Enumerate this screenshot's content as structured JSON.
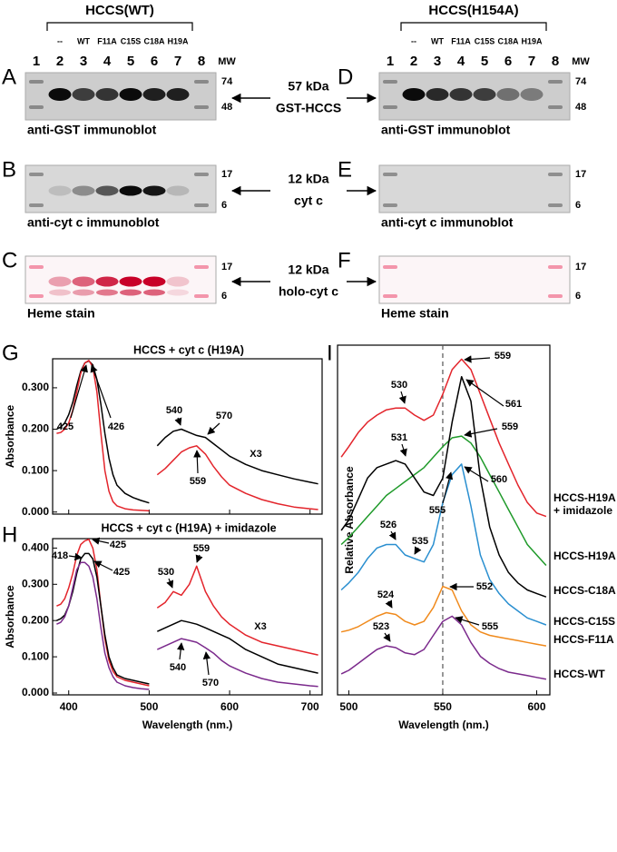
{
  "blots": {
    "groups": [
      {
        "title": "HCCS(WT)",
        "lanes": [
          "--",
          "WT",
          "F11A",
          "C15S",
          "C18A",
          "H19A"
        ],
        "lane_numbers": [
          1,
          2,
          3,
          4,
          5,
          6,
          7,
          8
        ],
        "mw_label": "MW",
        "panels": [
          {
            "letter": "A",
            "markers": [
              74,
              48
            ],
            "caption": "anti-GST immunoblot"
          },
          {
            "letter": "B",
            "markers": [
              17,
              6
            ],
            "caption": "anti-cyt c immunoblot"
          },
          {
            "letter": "C",
            "markers": [
              17,
              6
            ],
            "caption": "Heme stain"
          }
        ]
      },
      {
        "title": "HCCS(H154A)",
        "lanes": [
          "--",
          "WT",
          "F11A",
          "C15S",
          "C18A",
          "H19A"
        ],
        "lane_numbers": [
          1,
          2,
          3,
          4,
          5,
          6,
          7,
          8
        ],
        "mw_label": "MW",
        "panels": [
          {
            "letter": "D",
            "markers": [
              74,
              48
            ],
            "caption": "anti-GST immunoblot"
          },
          {
            "letter": "E",
            "markers": [
              17,
              6
            ],
            "caption": "anti-cyt c immunoblot"
          },
          {
            "letter": "F",
            "markers": [
              17,
              6
            ],
            "caption": "Heme stain"
          }
        ]
      }
    ],
    "middle_labels": [
      [
        "57 kDa",
        "GST-HCCS"
      ],
      [
        "12 kDa",
        "cyt c"
      ],
      [
        "12 kDa",
        "holo-cyt c"
      ]
    ]
  },
  "chart_data": [
    {
      "type": "line",
      "panel": "G",
      "title": "HCCS + cyt c (H19A)",
      "ylabel": "Absorbance",
      "x": [
        385,
        390,
        395,
        400,
        405,
        410,
        415,
        420,
        425,
        430,
        435,
        440,
        445,
        450,
        455,
        460,
        470,
        480,
        490,
        500,
        505,
        510,
        520,
        530,
        540,
        550,
        559,
        570,
        580,
        590,
        600,
        620,
        640,
        660,
        680,
        700,
        710
      ],
      "series": [
        {
          "color": "#000000",
          "values": [
            0.2,
            0.205,
            0.215,
            0.235,
            0.265,
            0.305,
            0.34,
            0.36,
            0.365,
            0.355,
            0.32,
            0.26,
            0.19,
            0.13,
            0.09,
            0.065,
            0.045,
            0.035,
            0.028,
            0.022,
            null,
            0.16,
            0.18,
            0.195,
            0.2,
            0.192,
            0.185,
            0.18,
            0.165,
            0.15,
            0.135,
            0.115,
            0.1,
            0.09,
            0.08,
            0.072,
            0.068
          ]
        },
        {
          "color": "#e3242b",
          "values": [
            0.19,
            0.192,
            0.2,
            0.215,
            0.245,
            0.29,
            0.335,
            0.36,
            0.366,
            0.35,
            0.29,
            0.19,
            0.1,
            0.05,
            0.025,
            0.015,
            0.008,
            0.005,
            0.004,
            0.003,
            null,
            0.09,
            0.105,
            0.125,
            0.145,
            0.155,
            0.16,
            0.14,
            0.11,
            0.085,
            0.065,
            0.045,
            0.03,
            0.02,
            0.012,
            0.008,
            0.006
          ]
        }
      ],
      "xlim": [
        380,
        715
      ],
      "ylim": [
        -0.005,
        0.37
      ],
      "xticks": [
        400,
        500,
        600,
        700
      ],
      "yticks": [
        {
          "value": 0,
          "label": "0.000"
        },
        {
          "value": 0.1,
          "label": "0.100"
        },
        {
          "value": 0.2,
          "label": "0.200"
        },
        {
          "value": 0.3,
          "label": "0.300"
        }
      ],
      "annotations": [
        "425",
        "426",
        "540",
        "570",
        "559",
        "X3"
      ]
    },
    {
      "type": "line",
      "panel": "H",
      "title": "HCCS + cyt c (H19A) + imidazole",
      "xlabel": "Wavelength (nm.)",
      "ylabel": "Absorbance",
      "x": [
        385,
        390,
        395,
        400,
        405,
        410,
        415,
        420,
        425,
        430,
        435,
        440,
        445,
        450,
        455,
        460,
        470,
        480,
        490,
        500,
        505,
        510,
        520,
        530,
        540,
        550,
        559,
        570,
        580,
        590,
        600,
        620,
        640,
        660,
        680,
        700,
        710
      ],
      "series": [
        {
          "color": "#e3242b",
          "values": [
            0.24,
            0.245,
            0.26,
            0.29,
            0.33,
            0.38,
            0.41,
            0.42,
            0.424,
            0.4,
            0.34,
            0.24,
            0.15,
            0.09,
            0.06,
            0.045,
            0.035,
            0.03,
            0.025,
            0.02,
            null,
            0.235,
            0.25,
            0.28,
            0.27,
            0.3,
            0.35,
            0.28,
            0.24,
            0.21,
            0.19,
            0.16,
            0.14,
            0.13,
            0.12,
            0.11,
            0.105
          ]
        },
        {
          "color": "#000000",
          "values": [
            0.2,
            0.205,
            0.215,
            0.24,
            0.28,
            0.33,
            0.37,
            0.385,
            0.385,
            0.37,
            0.32,
            0.24,
            0.16,
            0.1,
            0.07,
            0.05,
            0.04,
            0.035,
            0.03,
            0.025,
            null,
            0.17,
            0.18,
            0.19,
            0.2,
            0.195,
            0.19,
            0.18,
            0.17,
            0.16,
            0.15,
            0.12,
            0.1,
            0.08,
            0.07,
            0.06,
            0.055
          ]
        },
        {
          "color": "#7b2a8c",
          "values": [
            0.19,
            0.195,
            0.21,
            0.24,
            0.29,
            0.34,
            0.36,
            0.36,
            0.35,
            0.32,
            0.26,
            0.18,
            0.11,
            0.07,
            0.045,
            0.03,
            0.02,
            0.015,
            0.012,
            0.01,
            null,
            0.12,
            0.13,
            0.14,
            0.15,
            0.145,
            0.14,
            0.125,
            0.11,
            0.09,
            0.075,
            0.055,
            0.04,
            0.03,
            0.025,
            0.02,
            0.018
          ]
        }
      ],
      "xlim": [
        380,
        715
      ],
      "ylim": [
        -0.005,
        0.426
      ],
      "xticks": [
        400,
        500,
        600,
        700
      ],
      "yticks": [
        {
          "value": 0,
          "label": "0.000"
        },
        {
          "value": 0.1,
          "label": "0.100"
        },
        {
          "value": 0.2,
          "label": "0.200"
        },
        {
          "value": 0.3,
          "label": "0.300"
        },
        {
          "value": 0.4,
          "label": "0.400"
        }
      ],
      "annotations": [
        "418",
        "425",
        "425",
        "530",
        "559",
        "540",
        "570",
        "X3"
      ]
    },
    {
      "type": "line",
      "panel": "I",
      "xlabel": "Wavelength (nm.)",
      "ylabel": "Relative Absorbance",
      "x": [
        496,
        500,
        505,
        510,
        515,
        520,
        525,
        530,
        535,
        540,
        545,
        550,
        555,
        560,
        565,
        570,
        575,
        580,
        585,
        590,
        595,
        600,
        605
      ],
      "series": [
        {
          "name": "HCCS-H19A + imidazole",
          "color": "#e3242b",
          "values": [
            6.8,
            7.1,
            7.5,
            7.8,
            8.0,
            8.15,
            8.2,
            8.2,
            8.0,
            7.85,
            8.0,
            8.6,
            9.3,
            9.6,
            9.3,
            8.6,
            7.9,
            7.2,
            6.6,
            6.0,
            5.5,
            5.2,
            5.1
          ]
        },
        {
          "name": "HCCS-H19A",
          "color": "#1f9a2a",
          "values": [
            4.3,
            4.5,
            4.8,
            5.1,
            5.4,
            5.7,
            5.9,
            6.1,
            6.3,
            6.5,
            6.8,
            7.1,
            7.35,
            7.4,
            7.2,
            6.8,
            6.3,
            5.8,
            5.3,
            4.8,
            4.3,
            4.0,
            3.7
          ]
        },
        {
          "name": "HCCS-C18A",
          "color": "#000000",
          "values": [
            4.7,
            5.0,
            5.6,
            6.2,
            6.5,
            6.6,
            6.7,
            6.6,
            6.2,
            5.8,
            5.7,
            6.2,
            7.8,
            9.1,
            8.4,
            6.2,
            4.8,
            4.0,
            3.5,
            3.2,
            3.0,
            2.9,
            2.8
          ]
        },
        {
          "name": "HCCS-C15S",
          "color": "#2a8fd0",
          "values": [
            3.0,
            3.2,
            3.5,
            3.9,
            4.2,
            4.3,
            4.3,
            4.0,
            3.9,
            3.8,
            4.3,
            5.5,
            6.3,
            6.6,
            5.4,
            4.0,
            3.3,
            2.9,
            2.6,
            2.4,
            2.2,
            2.1,
            2.0
          ]
        },
        {
          "name": "HCCS-F11A",
          "color": "#f08a1c",
          "values": [
            1.8,
            1.85,
            1.95,
            2.1,
            2.25,
            2.35,
            2.3,
            2.1,
            2.0,
            2.1,
            2.5,
            3.1,
            3.0,
            2.4,
            2.0,
            1.8,
            1.7,
            1.65,
            1.6,
            1.55,
            1.5,
            1.45,
            1.4
          ]
        },
        {
          "name": "HCCS-WT",
          "color": "#7b2a8c",
          "values": [
            0.6,
            0.7,
            0.9,
            1.1,
            1.3,
            1.4,
            1.35,
            1.2,
            1.15,
            1.3,
            1.7,
            2.1,
            2.25,
            2.0,
            1.5,
            1.1,
            0.9,
            0.75,
            0.65,
            0.6,
            0.55,
            0.5,
            0.45
          ]
        }
      ],
      "xlim": [
        494,
        607
      ],
      "ylim": [
        0,
        10
      ],
      "xticks": [
        500,
        550,
        600
      ],
      "vline": 550,
      "annotations": [
        "530",
        "559",
        "559",
        "561",
        "531",
        "555",
        "560",
        "526",
        "535",
        "524",
        "552",
        "523",
        "555"
      ]
    }
  ]
}
